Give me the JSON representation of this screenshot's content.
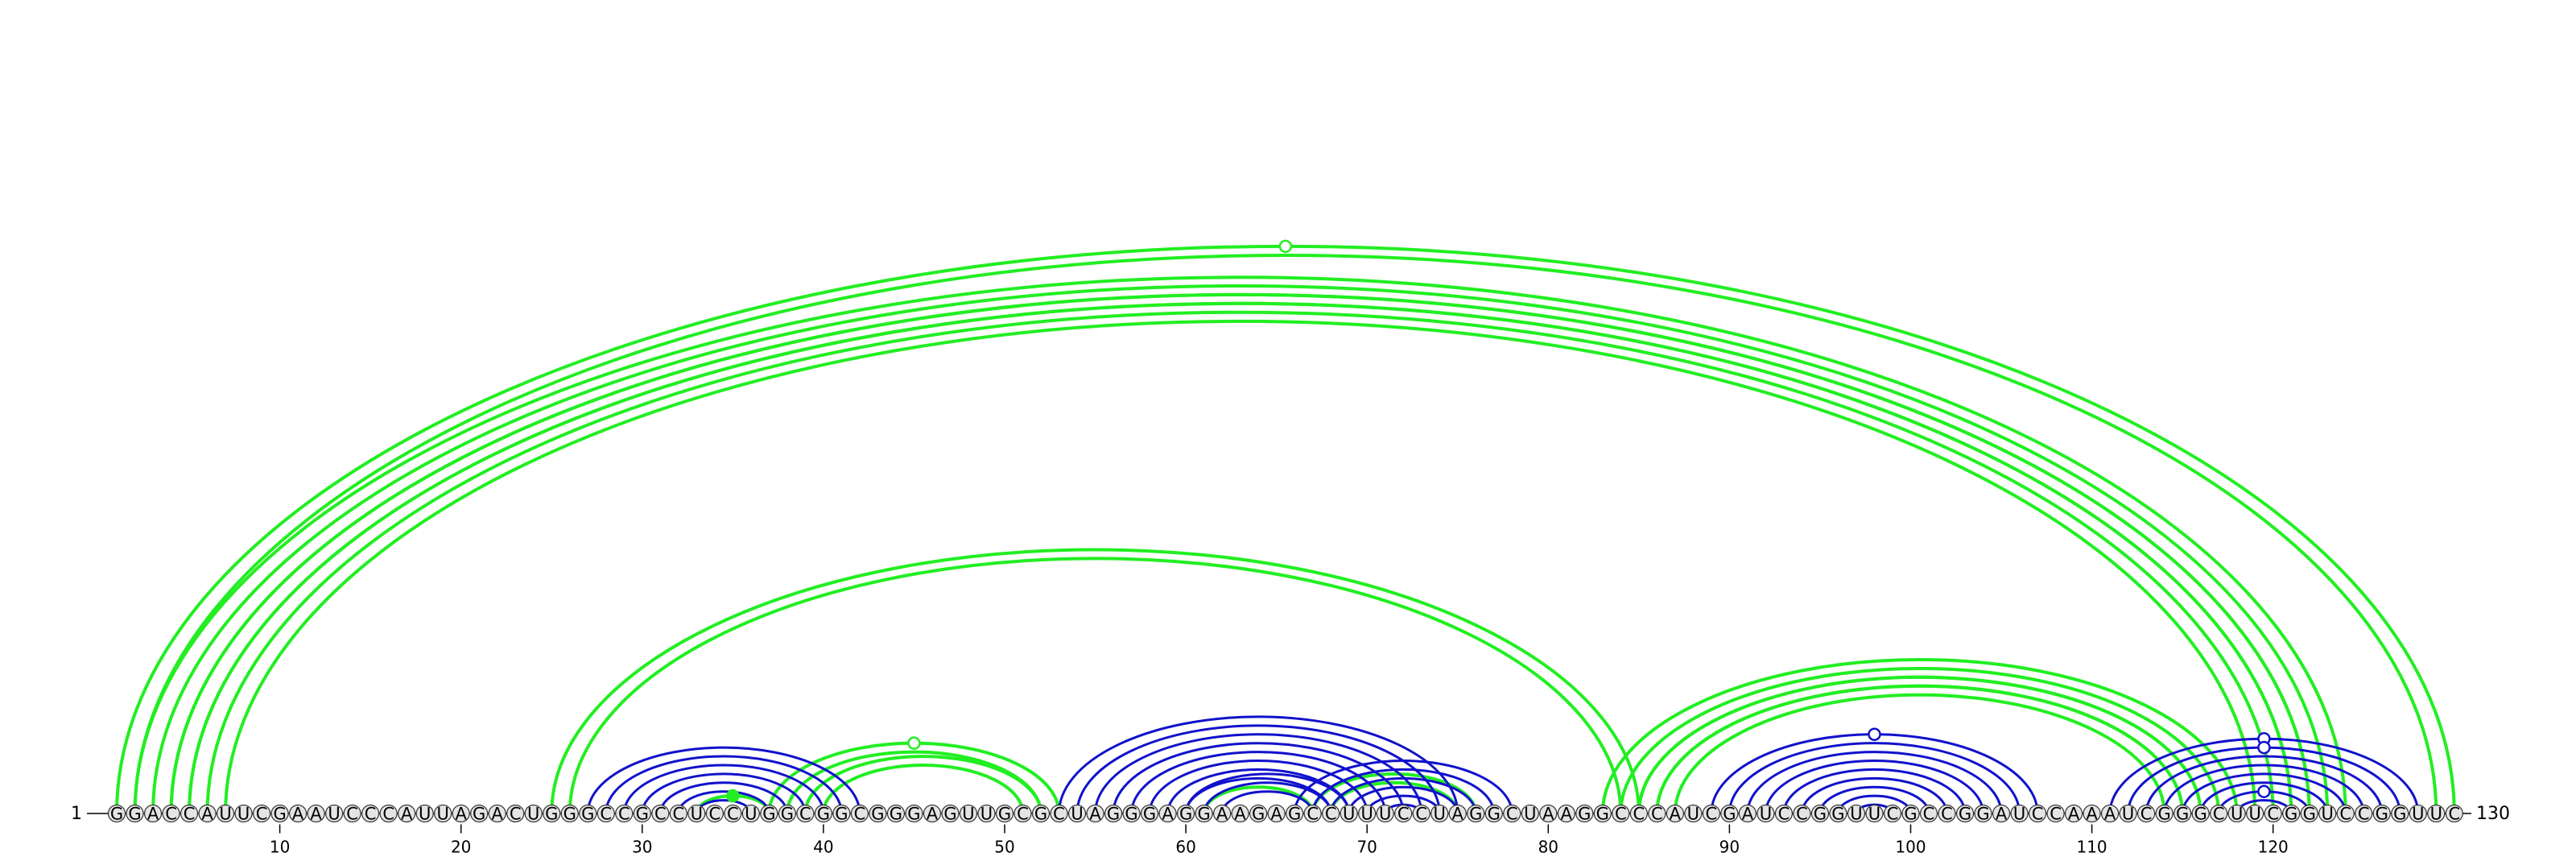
{
  "sequence": "GGACCAUUCGAAUCCCAUUAGACUGGGCCGCCUCCUGGCGGCGGGAGUUGCGCUAGGGAGGAAGAGCCUUUCCUAGGCUAAGGCCCAUCGAUCCGGUUCGCCGGAUCCAAAUCGGGCUUCGGUCCGGUUC",
  "start_label": "1",
  "end_label": "130",
  "tick_labels": [
    "10",
    "20",
    "30",
    "40",
    "50",
    "60",
    "70",
    "80",
    "90",
    "100",
    "110",
    "120"
  ],
  "colors": {
    "green": "#22ee22",
    "blue": "#1111cc",
    "bead_fill": "#e4e4e4"
  },
  "chart_data": {
    "type": "arc-diagram",
    "sequence_length": 130,
    "tick_positions": [
      10,
      20,
      30,
      40,
      50,
      60,
      70,
      80,
      90,
      100,
      110,
      120
    ],
    "green_helices": [
      {
        "start": 1,
        "end": 130,
        "count": 2,
        "marker": "open",
        "marker_pair": 65
      },
      {
        "start": 2,
        "end": 124,
        "count": 4
      },
      {
        "start": 4,
        "end": 122,
        "count": 4
      },
      {
        "start": 25,
        "end": 85,
        "count": 2
      },
      {
        "start": 33,
        "end": 37,
        "count": 1,
        "marker": "filled"
      },
      {
        "start": 37,
        "end": 53,
        "count": 2,
        "marker": "open",
        "marker_pair": 45
      },
      {
        "start": 39,
        "end": 52,
        "count": 2
      },
      {
        "start": 61,
        "end": 67,
        "count": 1
      },
      {
        "start": 67,
        "end": 76,
        "count": 2
      },
      {
        "start": 83,
        "end": 118,
        "count": 4
      },
      {
        "start": 85,
        "end": 116,
        "count": 3
      }
    ],
    "blue_helices": [
      {
        "start": 27,
        "end": 42,
        "count": 8
      },
      {
        "start": 53,
        "end": 75,
        "count": 8
      },
      {
        "start": 60,
        "end": 69,
        "count": 3
      },
      {
        "start": 66,
        "end": 78,
        "count": 8
      },
      {
        "start": 89,
        "end": 107,
        "count": 9,
        "marker": "open",
        "marker_pair": 98
      },
      {
        "start": 111,
        "end": 128,
        "count": 8,
        "marker": "open",
        "marker_pair": 119
      }
    ],
    "blue_markers": [
      {
        "start": 112,
        "end": 127,
        "marker": "open"
      },
      {
        "start": 117,
        "end": 122,
        "marker": "open"
      }
    ]
  }
}
